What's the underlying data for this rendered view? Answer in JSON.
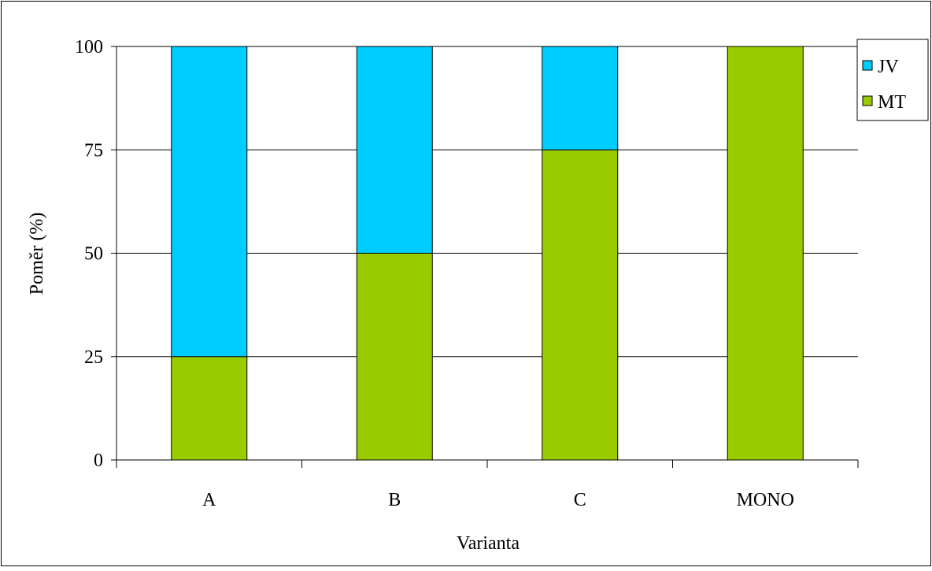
{
  "chart_data": {
    "type": "bar",
    "stacked": true,
    "title": "",
    "xlabel": "Varianta",
    "ylabel": "Poměr (%)",
    "categories": [
      "A",
      "B",
      "C",
      "MONO"
    ],
    "ylim": [
      0,
      100
    ],
    "yticks": [
      "0",
      "25",
      "50",
      "75",
      "100"
    ],
    "ytick_values": [
      0,
      25,
      50,
      75,
      100
    ],
    "grid": true,
    "legend": {
      "position": "top-right",
      "entries": [
        "JV",
        "MT"
      ]
    },
    "series": [
      {
        "name": "MT",
        "values": [
          25,
          50,
          75,
          100
        ],
        "color": "#99CC00"
      },
      {
        "name": "JV",
        "values": [
          75,
          50,
          25,
          0
        ],
        "color": "#00CCFF"
      }
    ]
  }
}
